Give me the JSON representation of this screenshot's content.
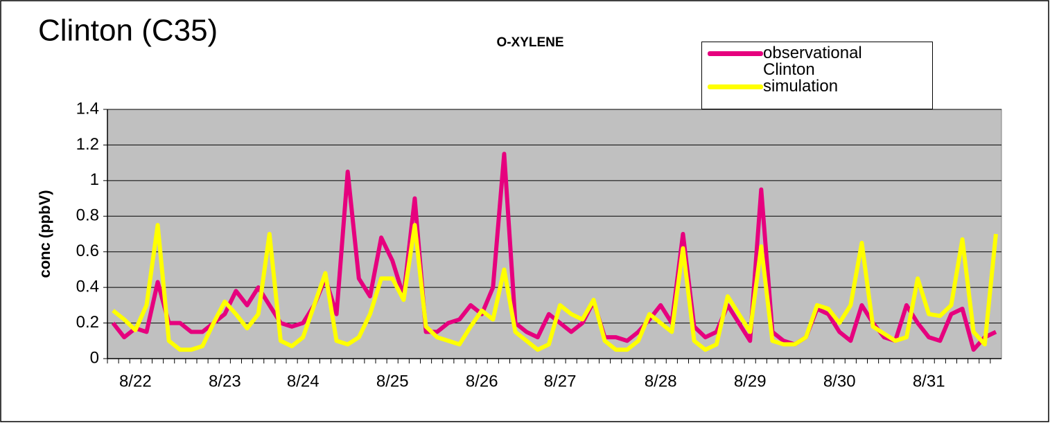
{
  "chart_data": {
    "type": "line",
    "title": "Clinton (C35)",
    "subtitle": "O-XYLENE",
    "y_label": "conc (ppbV)",
    "categories": [
      null,
      null,
      "8/22",
      null,
      null,
      null,
      null,
      null,
      null,
      null,
      "8/23",
      null,
      null,
      null,
      null,
      null,
      null,
      "8/24",
      null,
      null,
      null,
      null,
      null,
      null,
      null,
      "8/25",
      null,
      null,
      null,
      null,
      null,
      null,
      null,
      "8/26",
      null,
      null,
      null,
      null,
      null,
      null,
      "8/27",
      null,
      null,
      null,
      null,
      null,
      null,
      null,
      null,
      "8/28",
      null,
      null,
      null,
      null,
      null,
      null,
      null,
      "8/29",
      null,
      null,
      null,
      null,
      null,
      null,
      null,
      "8/30",
      null,
      null,
      null,
      null,
      null,
      null,
      null,
      "8/31",
      null,
      null,
      null,
      null,
      null,
      null
    ],
    "series": [
      {
        "name": "observational Clinton",
        "color": "#e6007e",
        "values": [
          0.2,
          0.12,
          0.17,
          0.15,
          0.43,
          0.2,
          0.2,
          0.15,
          0.15,
          0.2,
          0.25,
          0.38,
          0.3,
          0.4,
          0.3,
          0.2,
          0.18,
          0.2,
          0.3,
          0.45,
          0.25,
          1.05,
          0.45,
          0.35,
          0.68,
          0.55,
          0.35,
          0.9,
          0.15,
          0.15,
          0.2,
          0.22,
          0.3,
          0.25,
          0.4,
          1.15,
          0.2,
          0.15,
          0.12,
          0.25,
          0.2,
          0.15,
          0.2,
          0.32,
          0.12,
          0.12,
          0.1,
          0.15,
          0.22,
          0.3,
          0.2,
          0.7,
          0.18,
          0.12,
          0.15,
          0.3,
          0.2,
          0.1,
          0.95,
          0.15,
          0.1,
          0.08,
          0.12,
          0.28,
          0.25,
          0.15,
          0.1,
          0.3,
          0.2,
          0.12,
          0.1,
          0.3,
          0.2,
          0.12,
          0.1,
          0.25,
          0.28,
          0.05,
          0.12,
          0.15
        ]
      },
      {
        "name": "simulation",
        "color": "#ffff00",
        "values": [
          0.27,
          0.22,
          0.16,
          0.3,
          0.75,
          0.1,
          0.05,
          0.05,
          0.07,
          0.2,
          0.32,
          0.25,
          0.17,
          0.25,
          0.7,
          0.1,
          0.07,
          0.12,
          0.3,
          0.48,
          0.1,
          0.08,
          0.12,
          0.25,
          0.45,
          0.45,
          0.33,
          0.75,
          0.18,
          0.12,
          0.1,
          0.08,
          0.18,
          0.27,
          0.22,
          0.5,
          0.15,
          0.1,
          0.05,
          0.08,
          0.3,
          0.25,
          0.22,
          0.33,
          0.1,
          0.05,
          0.05,
          0.1,
          0.25,
          0.2,
          0.15,
          0.62,
          0.1,
          0.05,
          0.08,
          0.35,
          0.25,
          0.15,
          0.63,
          0.1,
          0.08,
          0.08,
          0.12,
          0.3,
          0.28,
          0.2,
          0.3,
          0.65,
          0.18,
          0.14,
          0.1,
          0.12,
          0.45,
          0.25,
          0.24,
          0.3,
          0.67,
          0.15,
          0.08,
          0.7
        ]
      }
    ],
    "ylim": [
      0,
      1.4
    ],
    "yticks": [
      0,
      0.2,
      0.4,
      0.6,
      0.8,
      1,
      1.2,
      1.4
    ],
    "grid": true,
    "legend": "top-right"
  }
}
